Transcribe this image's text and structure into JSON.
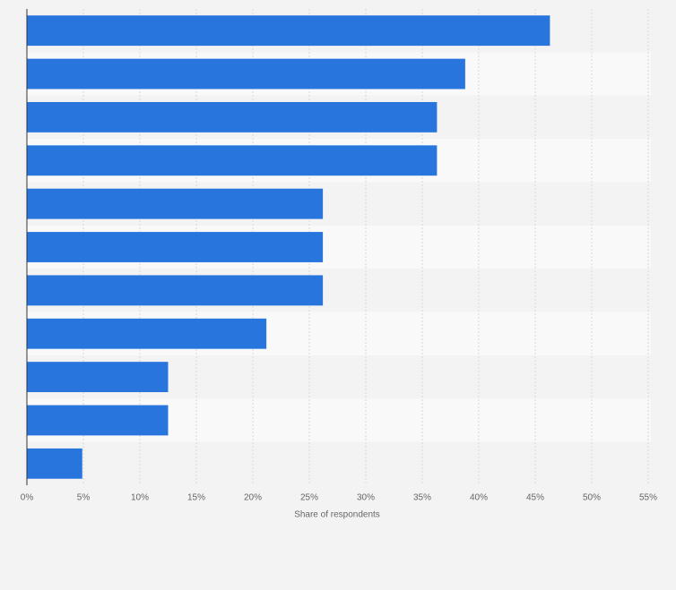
{
  "chart_data": {
    "type": "bar",
    "orientation": "horizontal",
    "x_label": "Share of respondents",
    "categories": [
      null,
      null,
      null,
      null,
      null,
      null,
      null,
      null,
      null,
      null,
      null
    ],
    "values": [
      46.3,
      38.8,
      36.3,
      36.3,
      26.2,
      26.2,
      26.2,
      21.2,
      12.5,
      12.5,
      4.9
    ],
    "color": "#2876dd",
    "xlim": [
      0,
      55
    ],
    "xticks": [
      {
        "value": 0,
        "label": "0%"
      },
      {
        "value": 5,
        "label": "5%"
      },
      {
        "value": 10,
        "label": "10%"
      },
      {
        "value": 15,
        "label": "15%"
      },
      {
        "value": 20,
        "label": "20%"
      },
      {
        "value": 25,
        "label": "25%"
      },
      {
        "value": 30,
        "label": "30%"
      },
      {
        "value": 35,
        "label": "35%"
      },
      {
        "value": 40,
        "label": "40%"
      },
      {
        "value": 45,
        "label": "45%"
      },
      {
        "value": 50,
        "label": "50%"
      },
      {
        "value": 55,
        "label": "55%"
      }
    ],
    "grid": true
  }
}
